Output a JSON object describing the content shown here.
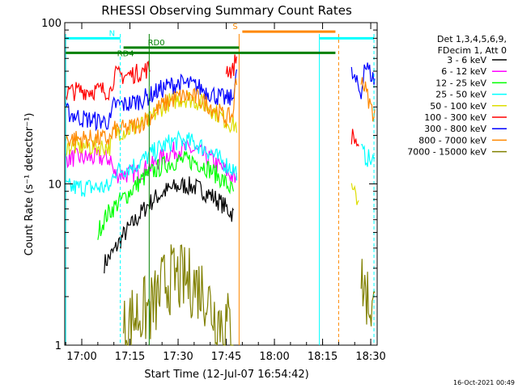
{
  "chart_data": {
    "type": "line",
    "title": "RHESSI Observing Summary Count Rates",
    "xlabel": "Start Time (12-Jul-07 16:54:42)",
    "ylabel": "Count Rate (s⁻¹ detector⁻¹)",
    "yscale": "log",
    "ylim": [
      1,
      100
    ],
    "xlim": [
      "16:54:42",
      "18:32:00"
    ],
    "x_ticks": [
      "17:00",
      "17:15",
      "17:30",
      "17:45",
      "18:00",
      "18:15",
      "18:30"
    ],
    "y_ticks": [
      "1",
      "10",
      "100"
    ],
    "footer_date": "16-Oct-2021 00:49",
    "legend": {
      "placement": "right",
      "header": [
        "Det 1,3,4,5,6,9,",
        "FDecim 1, Att 0"
      ]
    },
    "segments": [
      {
        "start": "16:55",
        "end": "17:48"
      },
      {
        "start": "18:20",
        "end": "18:31"
      }
    ],
    "series": [
      {
        "name": "3 - 6 keV",
        "color": "#000000",
        "points": [
          [
            "17:07",
            3.2
          ],
          [
            "17:10",
            3.8
          ],
          [
            "17:13",
            4.8
          ],
          [
            "17:17",
            6.0
          ],
          [
            "17:20",
            7.2
          ],
          [
            "17:23",
            8.2
          ],
          [
            "17:26",
            9.0
          ],
          [
            "17:29",
            9.5
          ],
          [
            "17:32",
            9.8
          ],
          [
            "17:35",
            9.6
          ],
          [
            "17:38",
            9.0
          ],
          [
            "17:41",
            8.3
          ],
          [
            "17:44",
            7.4
          ],
          [
            "17:47",
            6.5
          ]
        ]
      },
      {
        "name": "6 - 12 keV",
        "color": "#ff00ff",
        "points": [
          [
            "16:55",
            14.5
          ],
          [
            "17:00",
            14.5
          ],
          [
            "17:05",
            14.5
          ],
          [
            "17:09",
            14.3
          ],
          [
            "17:10",
            11.5
          ],
          [
            "17:14",
            11.5
          ],
          [
            "17:18",
            11.8
          ],
          [
            "17:22",
            13.0
          ],
          [
            "17:25",
            14.5
          ],
          [
            "17:28",
            15.8
          ],
          [
            "17:31",
            16.5
          ],
          [
            "17:34",
            16.3
          ],
          [
            "17:37",
            15.5
          ],
          [
            "17:40",
            14.3
          ],
          [
            "17:43",
            12.8
          ],
          [
            "17:46",
            11.5
          ],
          [
            "17:48",
            10.5
          ]
        ]
      },
      {
        "name": "12 - 25 keV",
        "color": "#00ff00",
        "points": [
          [
            "17:05",
            5.0
          ],
          [
            "17:08",
            6.5
          ],
          [
            "17:11",
            7.5
          ],
          [
            "17:14",
            8.5
          ],
          [
            "17:17",
            9.8
          ],
          [
            "17:20",
            11.2
          ],
          [
            "17:23",
            12.2
          ],
          [
            "17:26",
            13.2
          ],
          [
            "17:29",
            13.8
          ],
          [
            "17:32",
            14.0
          ],
          [
            "17:35",
            13.8
          ],
          [
            "17:38",
            13.0
          ],
          [
            "17:41",
            11.8
          ],
          [
            "17:44",
            10.5
          ],
          [
            "17:47",
            9.0
          ]
        ]
      },
      {
        "name": "25 - 50 keV",
        "color": "#00ffff",
        "points": [
          [
            "16:55",
            9.5
          ],
          [
            "17:00",
            9.5
          ],
          [
            "17:05",
            9.5
          ],
          [
            "17:09",
            9.5
          ],
          [
            "17:10",
            12.0
          ],
          [
            "17:14",
            12.5
          ],
          [
            "17:18",
            13.5
          ],
          [
            "17:22",
            15.5
          ],
          [
            "17:25",
            17.0
          ],
          [
            "17:28",
            18.2
          ],
          [
            "17:31",
            18.5
          ],
          [
            "17:34",
            18.2
          ],
          [
            "17:37",
            17.2
          ],
          [
            "17:40",
            15.8
          ],
          [
            "17:43",
            14.0
          ],
          [
            "17:46",
            12.8
          ],
          [
            "17:48",
            12.0
          ],
          [
            "18:27",
            16.0
          ],
          [
            "18:28",
            15.0
          ],
          [
            "18:29",
            14.5
          ],
          [
            "18:30",
            14.0
          ],
          [
            "18:31",
            13.5
          ]
        ]
      },
      {
        "name": "50 - 100 keV",
        "color": "#dddd00",
        "points": [
          [
            "16:55",
            17.0
          ],
          [
            "17:00",
            17.0
          ],
          [
            "17:05",
            17.0
          ],
          [
            "17:09",
            17.0
          ],
          [
            "17:10",
            21.0
          ],
          [
            "17:14",
            21.5
          ],
          [
            "17:18",
            23.0
          ],
          [
            "17:21",
            24.5
          ],
          [
            "17:24",
            29.0
          ],
          [
            "17:27",
            32.0
          ],
          [
            "17:30",
            33.5
          ],
          [
            "17:33",
            34.0
          ],
          [
            "17:36",
            32.5
          ],
          [
            "17:39",
            30.5
          ],
          [
            "17:42",
            27.5
          ],
          [
            "17:45",
            24.5
          ],
          [
            "17:48",
            23.0
          ],
          [
            "18:24",
            9.0
          ],
          [
            "18:25",
            8.5
          ],
          [
            "18:26",
            8.0
          ]
        ]
      },
      {
        "name": "100 - 300 keV",
        "color": "#ff0000",
        "points": [
          [
            "16:55",
            37
          ],
          [
            "17:00",
            38
          ],
          [
            "17:05",
            38
          ],
          [
            "17:09",
            38
          ],
          [
            "17:10",
            47
          ],
          [
            "17:14",
            47
          ],
          [
            "17:18",
            49
          ],
          [
            "17:21",
            52
          ],
          [
            "17:45",
            52
          ],
          [
            "17:47",
            50
          ],
          [
            "17:48",
            60
          ],
          [
            "18:24",
            20.0
          ],
          [
            "18:25",
            19.0
          ],
          [
            "18:26",
            17.5
          ]
        ]
      },
      {
        "name": "300 - 800 keV",
        "color": "#0000ff",
        "points": [
          [
            "16:55",
            28
          ],
          [
            "17:00",
            25.5
          ],
          [
            "17:05",
            24.5
          ],
          [
            "17:09",
            24.5
          ],
          [
            "17:10",
            31
          ],
          [
            "17:14",
            31
          ],
          [
            "17:18",
            33
          ],
          [
            "17:21",
            35
          ],
          [
            "17:24",
            38
          ],
          [
            "17:27",
            40.5
          ],
          [
            "17:30",
            42
          ],
          [
            "17:33",
            41.5
          ],
          [
            "17:36",
            40
          ],
          [
            "17:39",
            37.5
          ],
          [
            "17:42",
            35
          ],
          [
            "17:45",
            33.5
          ],
          [
            "17:47",
            34
          ],
          [
            "17:48",
            48
          ],
          [
            "18:24",
            48
          ],
          [
            "18:25",
            44
          ],
          [
            "18:26",
            40
          ],
          [
            "18:27",
            35
          ],
          [
            "18:28",
            55
          ],
          [
            "18:29",
            52
          ],
          [
            "18:30",
            48
          ],
          [
            "18:31",
            44
          ]
        ]
      },
      {
        "name": "800 - 7000 keV",
        "color": "#ff8800",
        "points": [
          [
            "16:55",
            19.0
          ],
          [
            "17:00",
            19.0
          ],
          [
            "17:05",
            19.0
          ],
          [
            "17:09",
            19.0
          ],
          [
            "17:10",
            21.5
          ],
          [
            "17:14",
            22.0
          ],
          [
            "17:18",
            23.5
          ],
          [
            "17:21",
            26.0
          ],
          [
            "17:24",
            29.5
          ],
          [
            "17:27",
            32.5
          ],
          [
            "17:30",
            34.5
          ],
          [
            "17:33",
            35.0
          ],
          [
            "17:36",
            34.0
          ],
          [
            "17:39",
            31.5
          ],
          [
            "17:42",
            28.5
          ],
          [
            "17:45",
            25.5
          ],
          [
            "17:47",
            26.5
          ],
          [
            "17:48",
            42.0
          ],
          [
            "18:27",
            47
          ],
          [
            "18:28",
            40
          ],
          [
            "18:29",
            35
          ],
          [
            "18:30",
            30
          ],
          [
            "18:31",
            27
          ]
        ]
      },
      {
        "name": "7000 - 15000 keV",
        "color": "#808000",
        "points": [
          [
            "17:13",
            1.2
          ],
          [
            "17:16",
            1.5
          ],
          [
            "17:19",
            1.6
          ],
          [
            "17:22",
            1.7
          ],
          [
            "17:24",
            2.0
          ],
          [
            "17:26",
            2.5
          ],
          [
            "17:29",
            2.6
          ],
          [
            "17:32",
            2.5
          ],
          [
            "17:35",
            2.4
          ],
          [
            "17:38",
            2.2
          ],
          [
            "17:41",
            1.6
          ],
          [
            "17:44",
            1.4
          ],
          [
            "17:47",
            1.3
          ],
          [
            "18:27",
            2.5
          ],
          [
            "18:29",
            2.0
          ],
          [
            "18:31",
            1.6
          ]
        ]
      }
    ],
    "flag_bars": [
      {
        "label": "N",
        "color": "#00ffff",
        "start": "16:55",
        "end": "17:12",
        "level": 80
      },
      {
        "label": "",
        "color": "#00ffff",
        "start": "18:14",
        "end": "18:31",
        "level": 80
      },
      {
        "label": "S",
        "color": "#ff8800",
        "start": "17:50",
        "end": "18:19",
        "level": 88
      },
      {
        "label": "RD0",
        "color": "#008000",
        "start": "17:13",
        "end": "17:49",
        "level": 70
      },
      {
        "label": "RD4",
        "color": "#008000",
        "start": "16:55",
        "end": "18:19",
        "level": 65
      }
    ],
    "vertical_markers": [
      {
        "time": "16:55",
        "color": "#00ffff",
        "style": "solid"
      },
      {
        "time": "17:12",
        "color": "#00ffff",
        "style": "dashed"
      },
      {
        "time": "17:21",
        "color": "#008000",
        "style": "solid"
      },
      {
        "time": "17:49",
        "color": "#ff8800",
        "style": "solid"
      },
      {
        "time": "18:14",
        "color": "#00ffff",
        "style": "solid"
      },
      {
        "time": "18:20",
        "color": "#ff8800",
        "style": "dashed"
      },
      {
        "time": "18:31",
        "color": "#00ffff",
        "style": "dashed"
      }
    ]
  }
}
